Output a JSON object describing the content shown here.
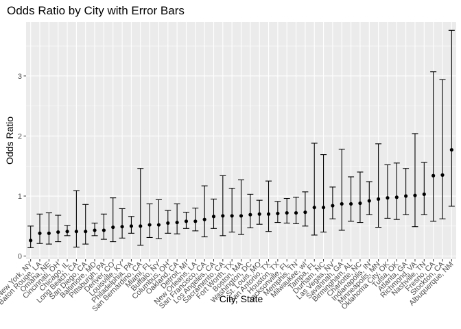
{
  "chart_data": {
    "type": "scatter",
    "title": "Odds Ratio by City with Error Bars",
    "xlabel": "City, State",
    "ylabel": "Odds Ratio",
    "ylim": [
      -0.05,
      3.9
    ],
    "yticks": [
      0,
      1,
      2,
      3
    ],
    "grid": true,
    "legend": "none",
    "categories": [
      "New York, NY",
      "Baton Rouge, LA",
      "Omaha, NE",
      "Cincinnati, OH",
      "Chicago, IL",
      "Long Beach, CA",
      "San Diego, CA",
      "Baltimore, MD",
      "Pittsburgh, PA",
      "Denver, CO",
      "Louisville, KY",
      "Philadelphia, PA",
      "San Bernardino, CA",
      "Miami, FL",
      "Buffalo, NY",
      "Columbus, OH",
      "Oakland, CA",
      "Detroit, MI",
      "New Orleans, LA",
      "San Francisco, CA",
      "Los Angeles, CA",
      "Sacramento, CA",
      "Fort Worth, TX",
      "Boston, MA",
      "Washington, DC",
      "St. Louis, MO",
      "San Antonio, TX",
      "Houston, TX",
      "Jacksonville, FL",
      "Memphis, TN",
      "Milwaukee, wI",
      "Tampa, FL",
      "Durham, NC",
      "Las Vegas, NV",
      "Savannah, GA",
      "Birmingham, AL",
      "Charlotte, NC",
      "Indianapolis, IN",
      "Minneapolis, MN",
      "Oklahoma City, OK",
      "Tulsa, OK",
      "Atlanta, GA",
      "Richmond, VA",
      "Nashville, TN",
      "Fresno, CA",
      "Stockton, CA",
      "Albuquerque, NM"
    ],
    "series": [
      {
        "odds_ratio": [
          0.26,
          0.38,
          0.38,
          0.4,
          0.41,
          0.41,
          0.41,
          0.43,
          0.43,
          0.48,
          0.49,
          0.5,
          0.5,
          0.52,
          0.52,
          0.55,
          0.56,
          0.58,
          0.58,
          0.61,
          0.66,
          0.67,
          0.67,
          0.67,
          0.69,
          0.7,
          0.7,
          0.71,
          0.72,
          0.72,
          0.73,
          0.81,
          0.81,
          0.84,
          0.87,
          0.87,
          0.88,
          0.92,
          0.95,
          0.97,
          0.98,
          1.0,
          1.01,
          1.03,
          1.34,
          1.35,
          1.77
        ],
        "lower": [
          0.14,
          0.21,
          0.2,
          0.24,
          0.34,
          0.15,
          0.2,
          0.34,
          0.28,
          0.24,
          0.3,
          0.38,
          0.18,
          0.31,
          0.29,
          0.38,
          0.37,
          0.46,
          0.42,
          0.32,
          0.46,
          0.34,
          0.4,
          0.36,
          0.47,
          0.53,
          0.41,
          0.56,
          0.55,
          0.54,
          0.5,
          0.35,
          0.4,
          0.62,
          0.43,
          0.58,
          0.56,
          0.69,
          0.48,
          0.63,
          0.61,
          0.69,
          0.49,
          0.69,
          0.58,
          0.62,
          0.83
        ],
        "upper": [
          0.5,
          0.7,
          0.72,
          0.68,
          0.51,
          1.09,
          0.86,
          0.55,
          0.7,
          0.97,
          0.79,
          0.66,
          1.46,
          0.87,
          0.94,
          0.76,
          0.87,
          0.73,
          0.8,
          1.17,
          0.95,
          1.34,
          1.13,
          1.27,
          1.03,
          0.93,
          1.25,
          0.91,
          0.96,
          0.98,
          1.07,
          1.88,
          1.69,
          1.15,
          1.78,
          1.32,
          1.4,
          1.24,
          1.87,
          1.52,
          1.55,
          1.46,
          2.04,
          1.56,
          3.07,
          2.94,
          3.76
        ]
      }
    ]
  }
}
